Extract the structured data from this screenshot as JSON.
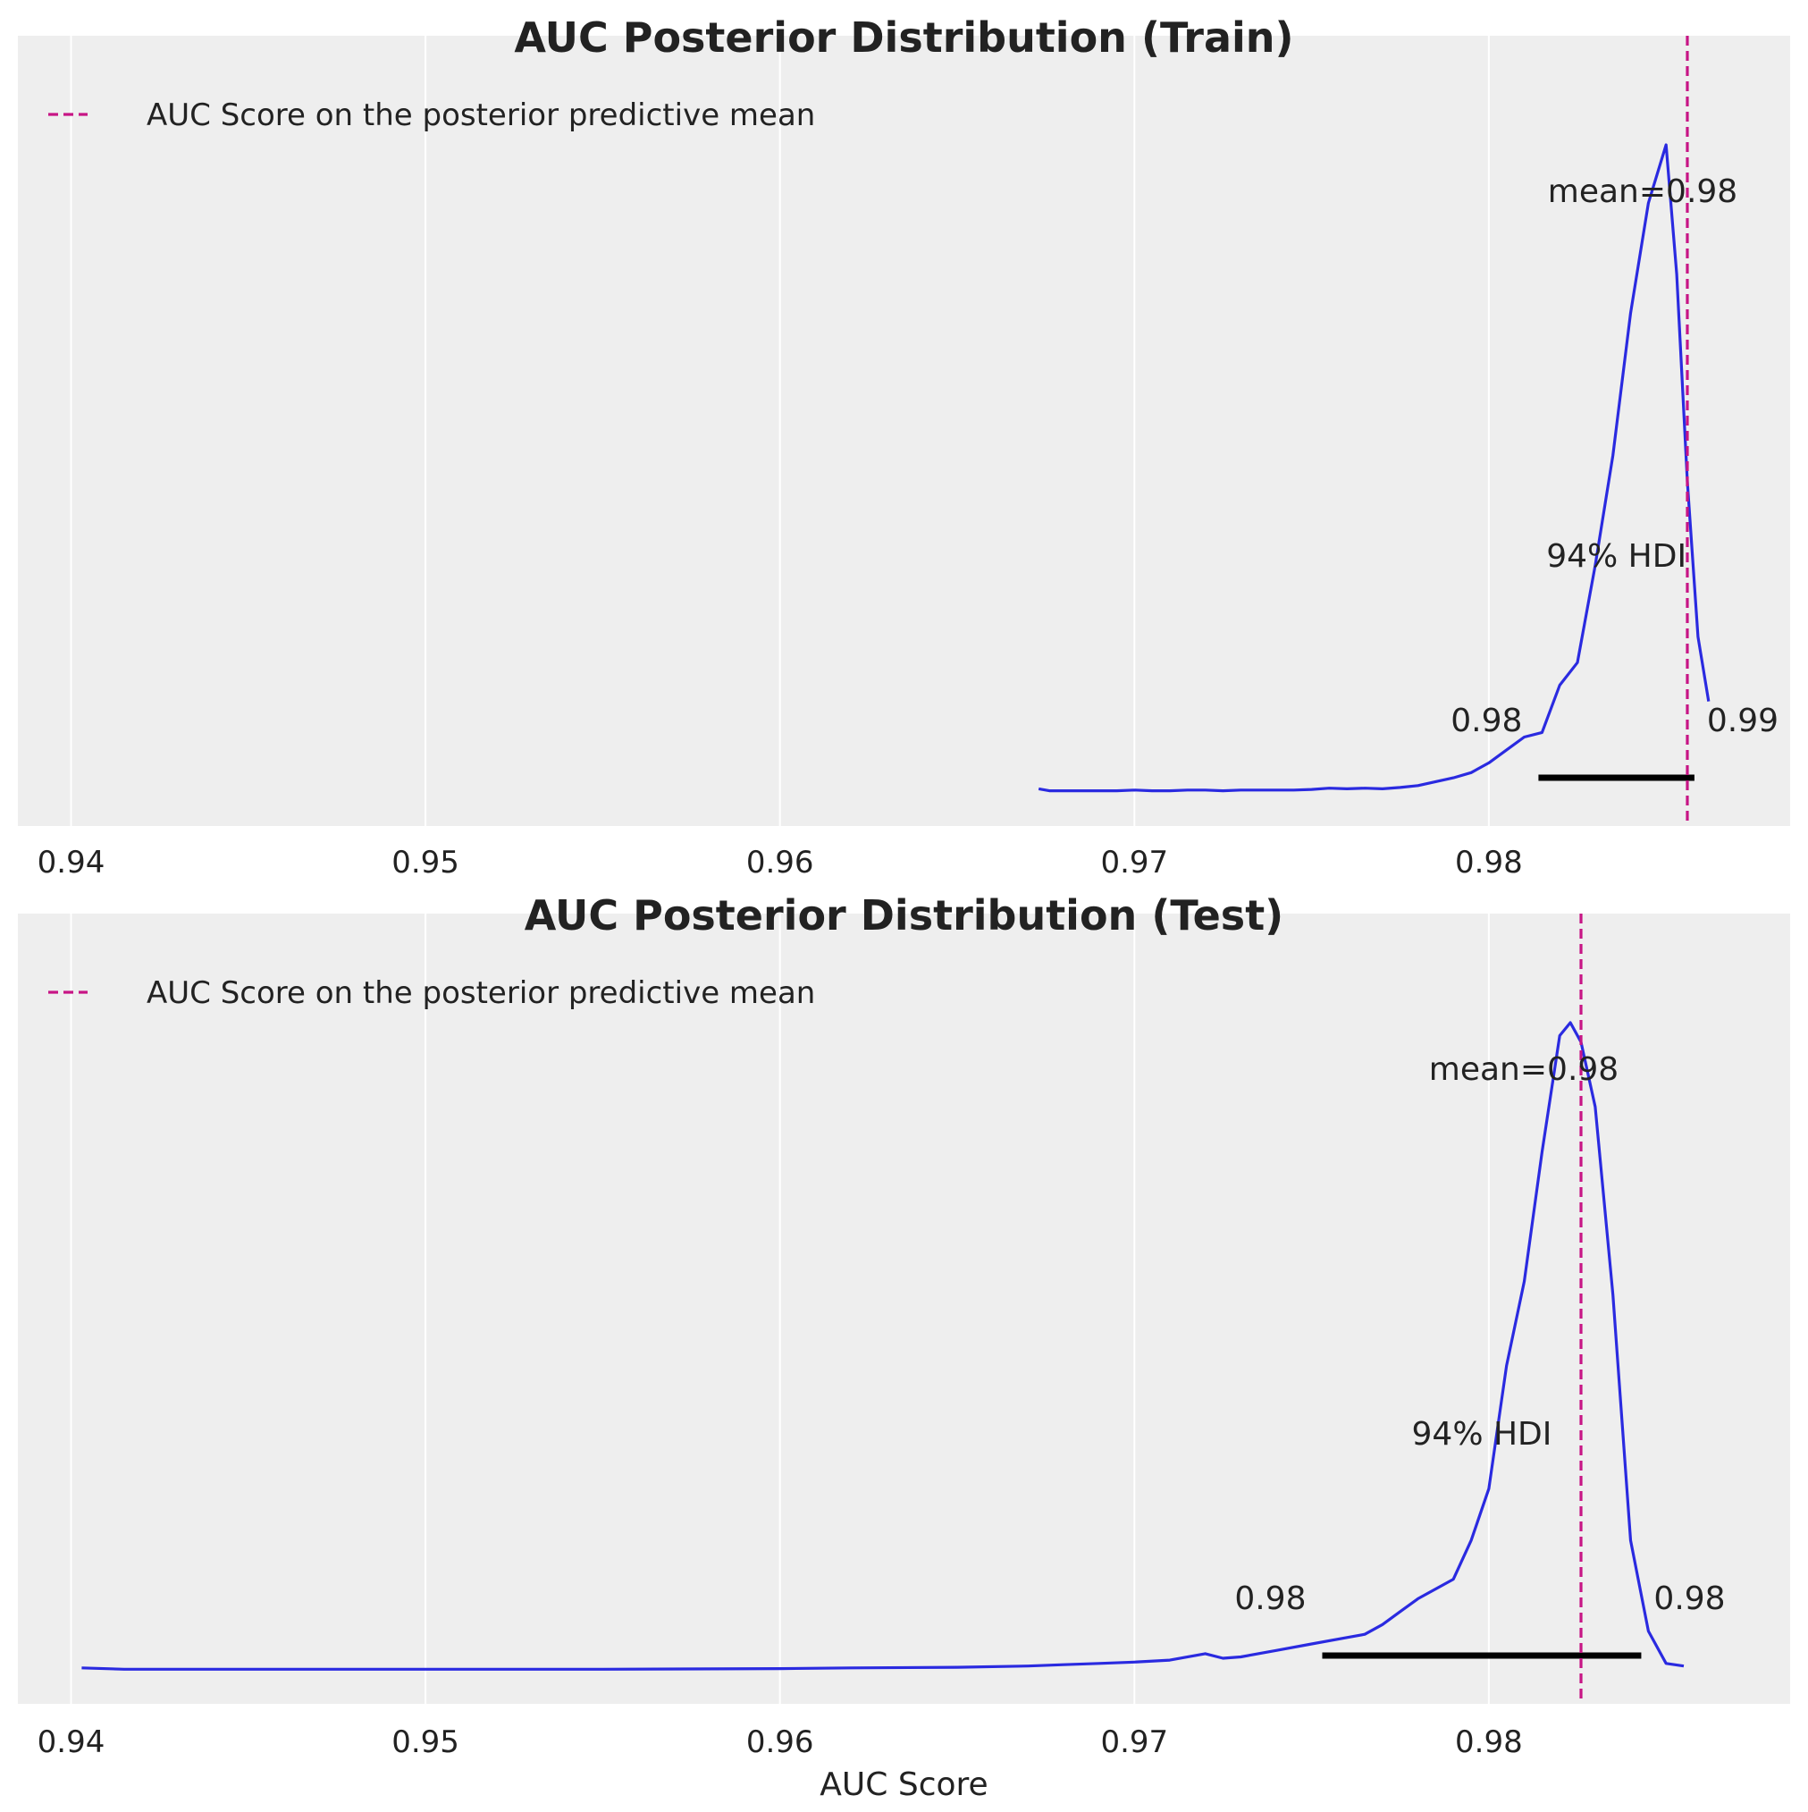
{
  "chart_data": [
    {
      "type": "line",
      "title": "AUC Posterior Distribution (Train)",
      "xlabel": "",
      "ylabel": "",
      "xlim": [
        0.9385,
        0.9885
      ],
      "x_ticks": [
        0.94,
        0.95,
        0.96,
        0.97,
        0.98
      ],
      "x_tick_labels": [
        "0.94",
        "0.95",
        "0.96",
        "0.97",
        "0.98"
      ],
      "grid": "vertical",
      "legend": {
        "position": "top-left",
        "entries": [
          {
            "label": "AUC Score on the posterior predictive mean",
            "style": "dashed",
            "color": "#c71585"
          }
        ]
      },
      "series": [
        {
          "style": "solid",
          "color": "#2a2ae0",
          "x": [
            0.9673,
            0.9676,
            0.968,
            0.9685,
            0.969,
            0.9695,
            0.97,
            0.9705,
            0.971,
            0.9715,
            0.972,
            0.9725,
            0.973,
            0.9735,
            0.974,
            0.9745,
            0.975,
            0.9755,
            0.976,
            0.9765,
            0.977,
            0.9775,
            0.978,
            0.9785,
            0.979,
            0.9795,
            0.98,
            0.9805,
            0.981,
            0.9815,
            0.982,
            0.9825,
            0.983,
            0.9835,
            0.984,
            0.9845,
            0.985,
            0.9853,
            0.9856,
            0.9859,
            0.9862
          ],
          "y": [
            0.005,
            0.002,
            0.002,
            0.002,
            0.002,
            0.002,
            0.003,
            0.002,
            0.002,
            0.003,
            0.003,
            0.002,
            0.003,
            0.003,
            0.003,
            0.003,
            0.004,
            0.006,
            0.005,
            0.006,
            0.005,
            0.007,
            0.01,
            0.016,
            0.022,
            0.03,
            0.045,
            0.065,
            0.085,
            0.092,
            0.165,
            0.2,
            0.35,
            0.52,
            0.74,
            0.91,
            1.0,
            0.8,
            0.48,
            0.24,
            0.14
          ]
        }
      ],
      "mean_line": {
        "x": 0.9856,
        "style": "dashed",
        "color": "#c71585"
      },
      "hdi": {
        "low": 0.9814,
        "high": 0.9858,
        "label": "94% HDI",
        "low_label": "0.98",
        "high_label": "0.99"
      },
      "mean_label": "mean=0.98"
    },
    {
      "type": "line",
      "title": "AUC Posterior Distribution (Test)",
      "xlabel": "AUC Score",
      "ylabel": "",
      "xlim": [
        0.9385,
        0.9885
      ],
      "x_ticks": [
        0.94,
        0.95,
        0.96,
        0.97,
        0.98
      ],
      "x_tick_labels": [
        "0.94",
        "0.95",
        "0.96",
        "0.97",
        "0.98"
      ],
      "grid": "vertical",
      "legend": {
        "position": "top-left",
        "entries": [
          {
            "label": "AUC Score on the posterior predictive mean",
            "style": "dashed",
            "color": "#c71585"
          }
        ]
      },
      "series": [
        {
          "style": "solid",
          "color": "#2a2ae0",
          "x": [
            0.9403,
            0.9415,
            0.943,
            0.945,
            0.95,
            0.955,
            0.96,
            0.962,
            0.965,
            0.967,
            0.968,
            0.969,
            0.97,
            0.971,
            0.972,
            0.9725,
            0.973,
            0.974,
            0.975,
            0.976,
            0.9765,
            0.977,
            0.9775,
            0.978,
            0.979,
            0.9795,
            0.98,
            0.9805,
            0.981,
            0.9815,
            0.982,
            0.9823,
            0.9826,
            0.983,
            0.9835,
            0.984,
            0.9845,
            0.985,
            0.9855
          ],
          "y": [
            0.003,
            0.001,
            0.001,
            0.001,
            0.001,
            0.001,
            0.002,
            0.003,
            0.004,
            0.006,
            0.008,
            0.01,
            0.012,
            0.015,
            0.025,
            0.018,
            0.02,
            0.03,
            0.04,
            0.05,
            0.055,
            0.07,
            0.09,
            0.11,
            0.14,
            0.2,
            0.28,
            0.47,
            0.6,
            0.8,
            0.98,
            1.0,
            0.97,
            0.87,
            0.58,
            0.2,
            0.06,
            0.01,
            0.006
          ]
        }
      ],
      "mean_line": {
        "x": 0.9826,
        "style": "dashed",
        "color": "#c71585"
      },
      "hdi": {
        "low": 0.9753,
        "high": 0.9843,
        "label": "94% HDI",
        "low_label": "0.98",
        "high_label": "0.98"
      },
      "mean_label": "mean=0.98"
    }
  ]
}
